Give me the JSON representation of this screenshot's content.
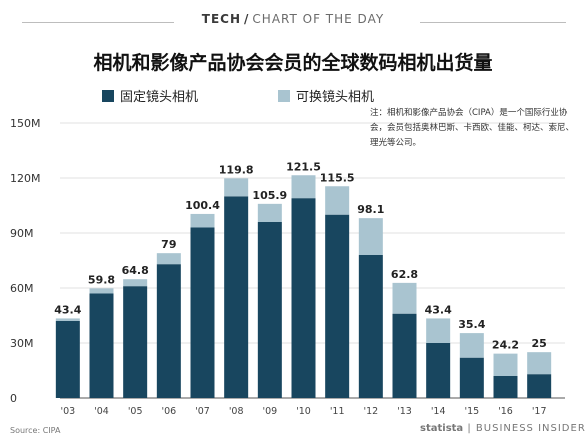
{
  "header": {
    "brand": "TECH",
    "slash": "/",
    "label": "CHART OF THE DAY"
  },
  "footer": {
    "source": "Source: CIPA",
    "statista": "statista",
    "publisher": "BUSINESS INSIDER"
  },
  "note": "注：相机和影像产品协会（CIPA）是一个国际行业协会，会员包括奥林巴斯、卡西欧、佳能、柯达、索尼、理光等公司。",
  "colors": {
    "fixed_lens": "#18465f",
    "interchangeable_lens": "#a9c4d0"
  },
  "chart_data": {
    "type": "bar",
    "stacked": true,
    "title": "相机和影像产品协会会员的全球数码相机出货量",
    "categories": [
      "'03",
      "'04",
      "'05",
      "'06",
      "'07",
      "'08",
      "'09",
      "'10",
      "'11",
      "'12",
      "'13",
      "'14",
      "'15",
      "'16",
      "'17"
    ],
    "totals": [
      43.4,
      59.8,
      64.8,
      79,
      100.4,
      119.8,
      105.9,
      121.5,
      115.5,
      98.1,
      62.8,
      43.4,
      35.4,
      24.2,
      25
    ],
    "series": [
      {
        "name": "固定镜头相机",
        "values": [
          42,
          57,
          61,
          73,
          93,
          110,
          96,
          109,
          100,
          78,
          46,
          30,
          22,
          12,
          13
        ]
      },
      {
        "name": "可换镜头相机",
        "values": [
          1.4,
          2.8,
          3.8,
          6,
          7.4,
          9.8,
          9.9,
          12.5,
          15.5,
          20.1,
          16.8,
          13.4,
          13.4,
          12.2,
          12
        ]
      }
    ],
    "yticks": [
      "0",
      "30M",
      "60M",
      "90M",
      "120M",
      "150M"
    ],
    "ytick_values": [
      0,
      30,
      60,
      90,
      120,
      150
    ],
    "ylim": [
      0,
      150
    ],
    "grid": true,
    "legend_position": "top-left"
  }
}
